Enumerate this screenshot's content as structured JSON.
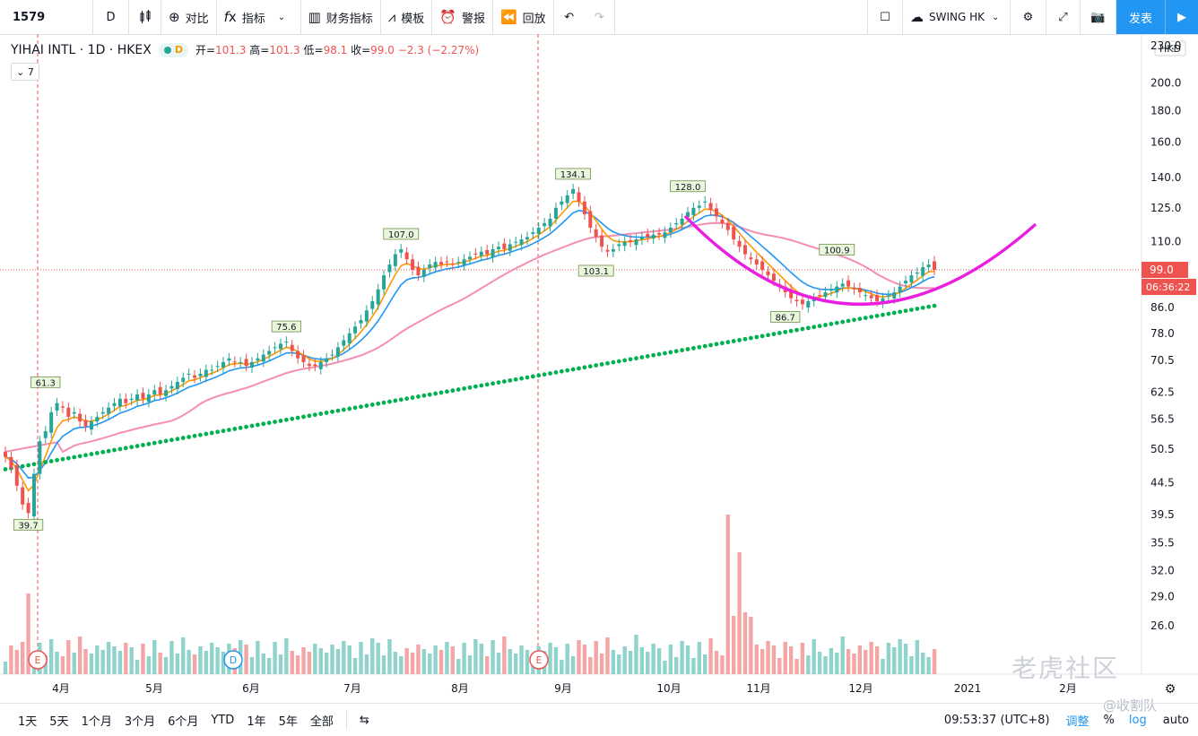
{
  "toolbar": {
    "symbol": "1579",
    "interval": "D",
    "compare": "对比",
    "indicators": "指标",
    "financials": "财务指标",
    "templates": "模板",
    "alert": "警报",
    "replay": "回放",
    "layout_name": "SWING HK",
    "publish": "发表"
  },
  "legend": {
    "name": "YIHAI INTL · 1D · HKEX",
    "badge": "D",
    "open_label": "开=",
    "open": "101.3",
    "high_label": "高=",
    "high": "101.3",
    "low_label": "低=",
    "low": "98.1",
    "close_label": "收=",
    "close": "99.0",
    "change": "−2.3 (−2.27%)",
    "collapse": "7"
  },
  "colors": {
    "up": "#26a69a",
    "down": "#ef5350",
    "ema_fast": "#ff9800",
    "ema_mid": "#2196f3",
    "ma_slow": "#f48fb1",
    "ma_long": "#00b050",
    "arc": "#e91ee0",
    "price_line": "#ef5350"
  },
  "chart_data": {
    "type": "candlestick",
    "scale": "log",
    "currency": "HKD",
    "y_ticks": [
      "230.0",
      "200.0",
      "180.0",
      "160.0",
      "140.0",
      "125.0",
      "110.0",
      "99.0",
      "86.0",
      "78.0",
      "70.5",
      "62.5",
      "56.5",
      "50.5",
      "44.5",
      "39.5",
      "35.5",
      "32.0",
      "29.0",
      "26.0"
    ],
    "x_ticks": [
      "4月",
      "5月",
      "6月",
      "7月",
      "8月",
      "9月",
      "10月",
      "11月",
      "12月",
      "2021",
      "2月"
    ],
    "last_price": "99.0",
    "countdown": "06:36:22",
    "annotations": [
      "39.7",
      "61.3",
      "75.6",
      "107.0",
      "134.1",
      "103.1",
      "128.0",
      "100.9",
      "86.7"
    ],
    "events": [
      "E",
      "D",
      "E",
      "E"
    ],
    "close_series": [
      49,
      47,
      44,
      41,
      39.7,
      46,
      52,
      54,
      58,
      60,
      59,
      57,
      58,
      56,
      55,
      56,
      57,
      58,
      59,
      60,
      61,
      60,
      61,
      62,
      61,
      62,
      63,
      62,
      63,
      64,
      65,
      66,
      67,
      66,
      67,
      68,
      68,
      69,
      70,
      71,
      70,
      70,
      69,
      70,
      71,
      72,
      73,
      74,
      75,
      75.6,
      73,
      71,
      70,
      69,
      69,
      70,
      71,
      72,
      74,
      76,
      78,
      80,
      82,
      85,
      88,
      92,
      97,
      101,
      105,
      107,
      103,
      99,
      97,
      99,
      101,
      102,
      101,
      102,
      101,
      102,
      103,
      104,
      105,
      106,
      105,
      107,
      108,
      107,
      109,
      110,
      111,
      112,
      114,
      116,
      118,
      120,
      125,
      128,
      131,
      134.1,
      128,
      122,
      116,
      112,
      108,
      106,
      107,
      109,
      110,
      110,
      111,
      112,
      112,
      113,
      113,
      114,
      116,
      118,
      120,
      123,
      125,
      126,
      128,
      124,
      121,
      118,
      115,
      111,
      108,
      105,
      103,
      101,
      99,
      97,
      95,
      93,
      91,
      89,
      88,
      87,
      88,
      89,
      90,
      91,
      92,
      93,
      94,
      93,
      92,
      91,
      90,
      89,
      88,
      89,
      90,
      91,
      93,
      95,
      97,
      98,
      100,
      101,
      99
    ]
  },
  "bottom": {
    "ranges": [
      "1天",
      "5天",
      "1个月",
      "3个月",
      "6个月",
      "YTD",
      "1年",
      "5年",
      "全部"
    ],
    "time": "09:53:37 (UTC+8)",
    "adjust": "调整",
    "pct": "%",
    "log": "log",
    "auto": "auto"
  },
  "watermark": "老虎社区",
  "watermark_user": "@收割队"
}
